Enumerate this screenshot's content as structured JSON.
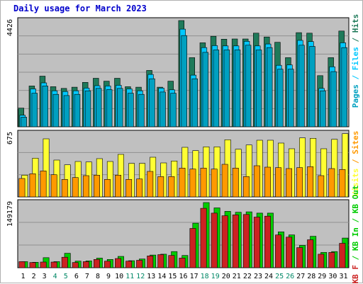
{
  "title": "Daily usage for March 2023",
  "colors": {
    "hits": "#1f7a5a",
    "files": "#00c8ff",
    "pages": "#00a0c0",
    "visits": "#ffff33",
    "sites": "#ff9900",
    "kb_in": "#00cc00",
    "kb_out": "#cc2222",
    "panel_bg": "#c0c0c0",
    "grid": "#909090",
    "blue_label": "#0000cc",
    "green_label": "#008866"
  },
  "right_labels": {
    "top": [
      "Pages",
      "Files",
      "Hits"
    ],
    "middle": [
      "Visits",
      "Sites"
    ],
    "bottom": [
      "KB F",
      "KB In",
      "KB Out"
    ]
  },
  "chart_data": [
    {
      "type": "bar",
      "panel": "requests",
      "y_label": "4426",
      "ylim": [
        0,
        4426
      ],
      "categories": [
        "1",
        "2",
        "3",
        "4",
        "5",
        "6",
        "7",
        "8",
        "9",
        "10",
        "11",
        "12",
        "13",
        "14",
        "15",
        "16",
        "17",
        "18",
        "19",
        "20",
        "21",
        "22",
        "23",
        "24",
        "25",
        "26",
        "27",
        "28",
        "29",
        "30",
        "31"
      ],
      "series": [
        {
          "name": "Hits",
          "values": [
            780,
            1700,
            2110,
            1670,
            1600,
            1650,
            1850,
            2020,
            1900,
            2020,
            1670,
            1650,
            2350,
            1650,
            1900,
            4426,
            2880,
            3500,
            3770,
            3650,
            3660,
            3660,
            3900,
            3740,
            3520,
            2880,
            3920,
            3900,
            2130,
            2880,
            3990
          ]
        },
        {
          "name": "Files",
          "values": [
            480,
            1580,
            1830,
            1500,
            1470,
            1500,
            1610,
            1710,
            1700,
            1730,
            1580,
            1500,
            2180,
            1610,
            1540,
            4070,
            2150,
            3300,
            3380,
            3370,
            3370,
            3560,
            3370,
            3450,
            2560,
            2580,
            3600,
            3550,
            1600,
            2500,
            3500
          ]
        },
        {
          "name": "Pages",
          "values": [
            400,
            1400,
            1700,
            1350,
            1300,
            1350,
            1500,
            1600,
            1550,
            1600,
            1400,
            1350,
            2000,
            1450,
            1400,
            3800,
            2000,
            3100,
            3200,
            3200,
            3200,
            3400,
            3200,
            3300,
            2400,
            2400,
            3400,
            3350,
            1500,
            2300,
            3300
          ]
        }
      ]
    },
    {
      "type": "bar",
      "panel": "visits",
      "y_label": "675",
      "ylim": [
        0,
        675
      ],
      "categories": [
        "1",
        "2",
        "3",
        "4",
        "5",
        "6",
        "7",
        "8",
        "9",
        "10",
        "11",
        "12",
        "13",
        "14",
        "15",
        "16",
        "17",
        "18",
        "19",
        "20",
        "21",
        "22",
        "23",
        "24",
        "25",
        "26",
        "27",
        "28",
        "29",
        "30",
        "31"
      ],
      "series": [
        {
          "name": "Visits",
          "values": [
            230,
            410,
            615,
            390,
            340,
            375,
            370,
            405,
            375,
            450,
            355,
            355,
            420,
            360,
            380,
            525,
            490,
            530,
            530,
            605,
            505,
            550,
            600,
            600,
            570,
            510,
            625,
            620,
            510,
            610,
            670
          ]
        },
        {
          "name": "Sites",
          "values": [
            195,
            245,
            275,
            235,
            185,
            205,
            225,
            230,
            185,
            230,
            185,
            190,
            270,
            215,
            215,
            305,
            295,
            305,
            295,
            345,
            305,
            215,
            330,
            315,
            310,
            300,
            310,
            320,
            225,
            300,
            290
          ]
        }
      ]
    },
    {
      "type": "bar",
      "panel": "volume",
      "y_label": "149179",
      "ylim": [
        0,
        149179
      ],
      "categories": [
        "1",
        "2",
        "3",
        "4",
        "5",
        "6",
        "7",
        "8",
        "9",
        "10",
        "11",
        "12",
        "13",
        "14",
        "15",
        "16",
        "17",
        "18",
        "19",
        "20",
        "21",
        "22",
        "23",
        "24",
        "25",
        "26",
        "27",
        "28",
        "29",
        "30",
        "31"
      ],
      "series": [
        {
          "name": "KB In",
          "values": [
            14000,
            12500,
            23000,
            14000,
            33000,
            15000,
            15500,
            22000,
            19000,
            26000,
            16000,
            20000,
            29000,
            31000,
            37000,
            28000,
            102000,
            149179,
            137000,
            129000,
            127000,
            128000,
            125000,
            125000,
            82000,
            75000,
            51000,
            72000,
            35000,
            37000,
            68000
          ]
        },
        {
          "name": "KB Out",
          "values": [
            14000,
            12000,
            13000,
            13000,
            24000,
            12000,
            14000,
            19000,
            15000,
            21000,
            15000,
            17000,
            27000,
            30000,
            28000,
            22000,
            90000,
            136000,
            125000,
            119000,
            121000,
            122000,
            116000,
            118000,
            75000,
            70000,
            46000,
            64000,
            31000,
            35000,
            56000
          ]
        }
      ]
    }
  ],
  "x_axis": {
    "labels": [
      "1",
      "2",
      "3",
      "4",
      "5",
      "6",
      "7",
      "8",
      "9",
      "10",
      "11",
      "12",
      "13",
      "14",
      "15",
      "16",
      "17",
      "18",
      "19",
      "20",
      "21",
      "22",
      "23",
      "24",
      "25",
      "26",
      "27",
      "28",
      "29",
      "30",
      "31"
    ],
    "weekend_days": [
      "4",
      "5",
      "11",
      "12",
      "18",
      "19",
      "25",
      "26"
    ]
  }
}
